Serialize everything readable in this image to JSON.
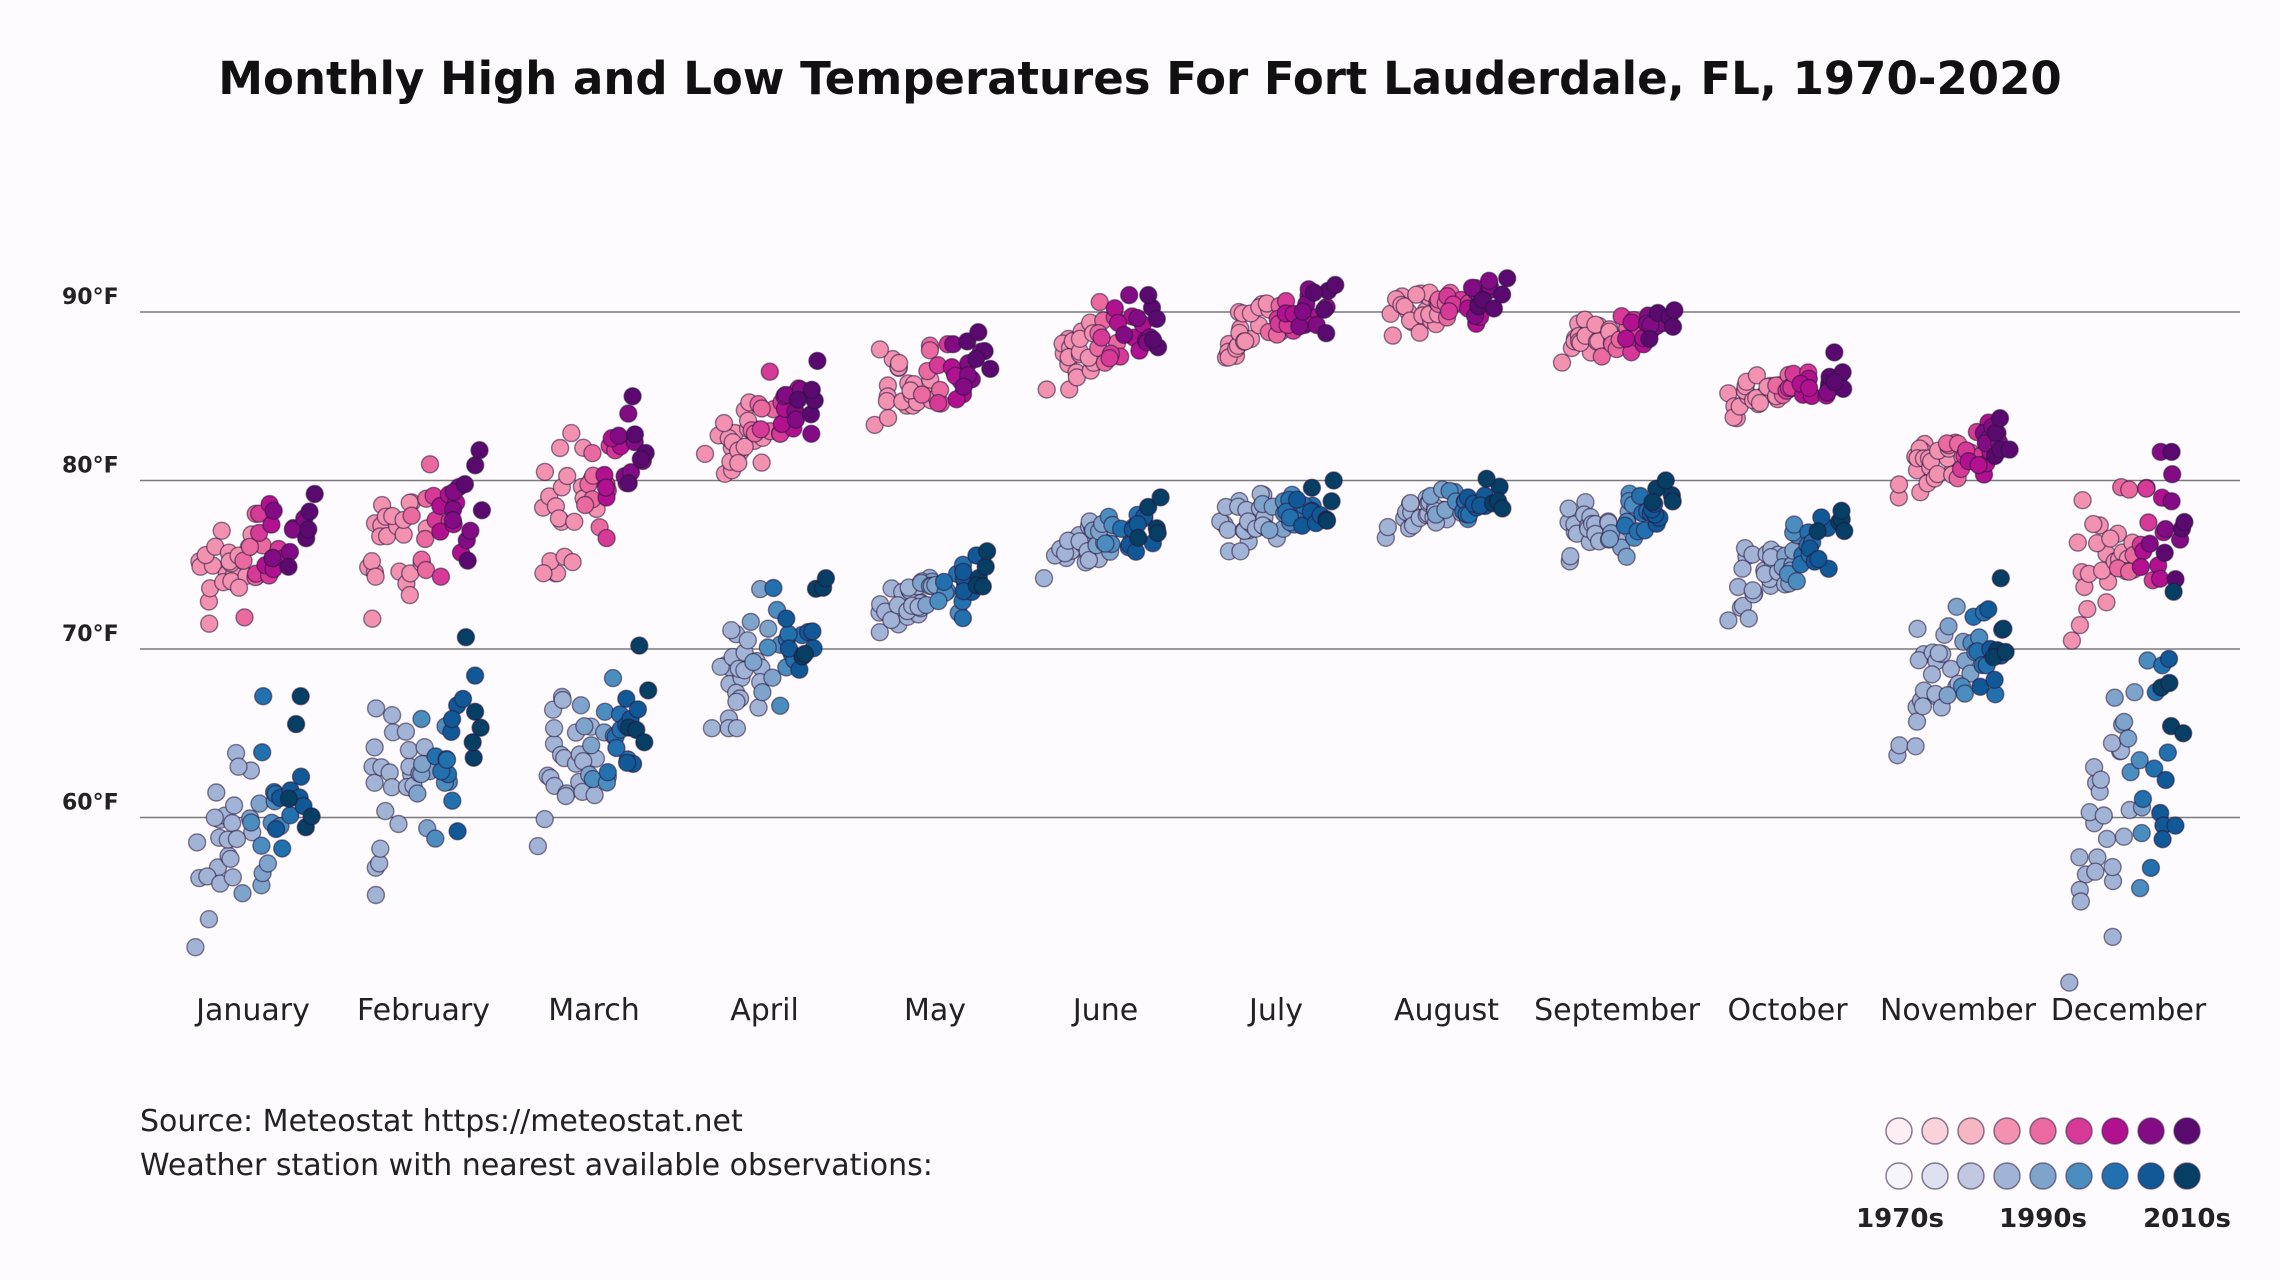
{
  "chart_data": {
    "type": "scatter",
    "title": "Monthly High and Low Temperatures For Fort Lauderdale, FL, 1970-2020",
    "categories": [
      "January",
      "February",
      "March",
      "April",
      "May",
      "June",
      "July",
      "August",
      "September",
      "October",
      "November",
      "December"
    ],
    "y_ticks": [
      {
        "value": 90,
        "label": "90°F"
      },
      {
        "value": 80,
        "label": "80°F"
      },
      {
        "value": 70,
        "label": "70°F"
      },
      {
        "value": 60,
        "label": "60°F"
      }
    ],
    "ylim": [
      50,
      95
    ],
    "grid": true,
    "series": [
      {
        "kind": "high",
        "palette": [
          "#fdeef3",
          "#f9d2db",
          "#f7b6c4",
          "#f291b0",
          "#ea6aa0",
          "#d63a96",
          "#b1118e",
          "#830c84",
          "#5a0a6e"
        ],
        "ranges": [
          {
            "lo": 71.5,
            "hi": 79.2
          },
          {
            "lo": 71.8,
            "hi": 81.8
          },
          {
            "lo": 74.5,
            "hi": 85.0
          },
          {
            "lo": 80.4,
            "hi": 87.1
          },
          {
            "lo": 83.3,
            "hi": 88.8
          },
          {
            "lo": 85.4,
            "hi": 91.0
          },
          {
            "lo": 87.3,
            "hi": 91.6
          },
          {
            "lo": 88.6,
            "hi": 92.0
          },
          {
            "lo": 87.0,
            "hi": 90.1
          },
          {
            "lo": 83.7,
            "hi": 87.6
          },
          {
            "lo": 79.0,
            "hi": 83.7
          },
          {
            "lo": 70.5,
            "hi": 81.7
          }
        ]
      },
      {
        "kind": "low",
        "palette": [
          "#f6f5fb",
          "#dde0ef",
          "#c1c8e1",
          "#a1b4d6",
          "#7ea4cc",
          "#4c8dc0",
          "#2271ae",
          "#115996",
          "#073e63"
        ],
        "ranges": [
          {
            "lo": 52.3,
            "hi": 67.2
          },
          {
            "lo": 55.4,
            "hi": 70.7
          },
          {
            "lo": 58.3,
            "hi": 70.2
          },
          {
            "lo": 65.3,
            "hi": 74.2
          },
          {
            "lo": 71.0,
            "hi": 75.8
          },
          {
            "lo": 74.2,
            "hi": 79.0
          },
          {
            "lo": 75.8,
            "hi": 80.0
          },
          {
            "lo": 76.6,
            "hi": 80.1
          },
          {
            "lo": 75.2,
            "hi": 80.0
          },
          {
            "lo": 71.7,
            "hi": 78.2
          },
          {
            "lo": 63.7,
            "hi": 74.2
          },
          {
            "lo": 50.2,
            "hi": 73.4
          }
        ]
      }
    ],
    "legend": {
      "placement": "bottom-right",
      "labels": [
        "1970s",
        "1990s",
        "2010s"
      ]
    }
  },
  "notes": {
    "source": "Source: Meteostat https://meteostat.net",
    "station": "Weather station with nearest available observations:"
  }
}
